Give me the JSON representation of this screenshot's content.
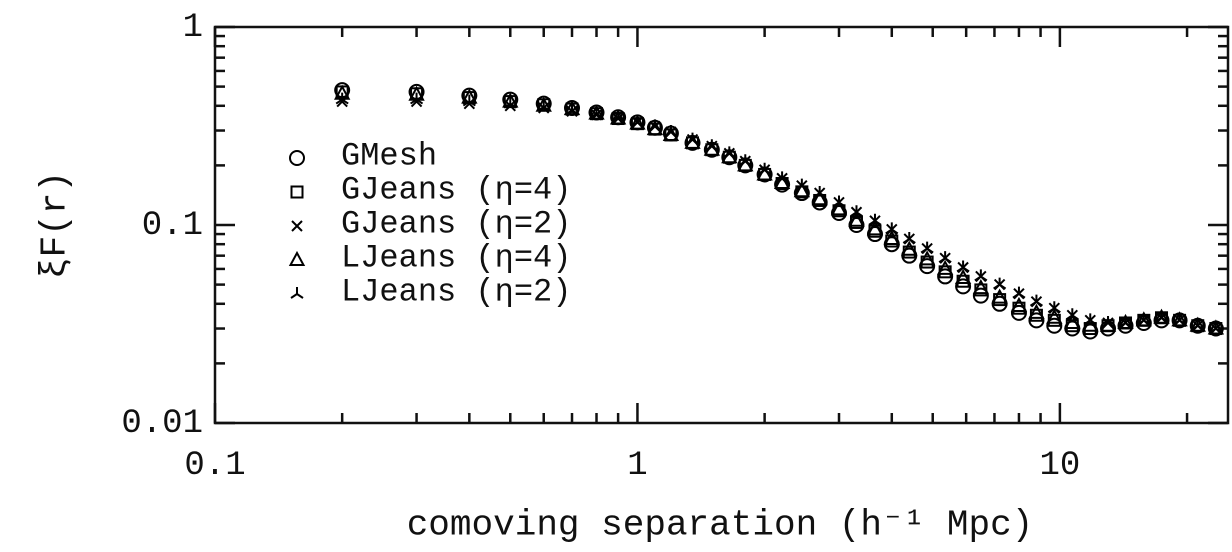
{
  "chart_data": {
    "type": "scatter",
    "x_label": "comoving separation (h⁻¹ Mpc)",
    "y_label": "ξF(r)",
    "x_log": true,
    "y_log": true,
    "xlim": [
      0.1,
      25
    ],
    "ylim": [
      0.01,
      1
    ],
    "xticks": [
      0.1,
      1,
      10
    ],
    "yticks": [
      0.01,
      0.1,
      1
    ],
    "legend": "left",
    "x": [
      0.2,
      0.3,
      0.4,
      0.5,
      0.6,
      0.7,
      0.8,
      0.9,
      1,
      1.1,
      1.2,
      1.35,
      1.5,
      1.65,
      1.8,
      2,
      2.2,
      2.45,
      2.7,
      3,
      3.3,
      3.65,
      4,
      4.4,
      4.85,
      5.35,
      5.9,
      6.5,
      7.2,
      8,
      8.8,
      9.7,
      10.7,
      11.8,
      13,
      14.3,
      15.8,
      17.4,
      19.2,
      21.2,
      23.4
    ],
    "series": [
      {
        "name": "GMesh",
        "marker": "circle",
        "color": "#000000",
        "values": [
          0.48,
          0.47,
          0.45,
          0.43,
          0.41,
          0.39,
          0.37,
          0.35,
          0.33,
          0.31,
          0.29,
          0.26,
          0.24,
          0.22,
          0.2,
          0.18,
          0.16,
          0.145,
          0.13,
          0.115,
          0.1,
          0.09,
          0.08,
          0.07,
          0.062,
          0.055,
          0.049,
          0.044,
          0.04,
          0.036,
          0.033,
          0.031,
          0.03,
          0.029,
          0.03,
          0.031,
          0.032,
          0.033,
          0.033,
          0.031,
          0.03
        ]
      },
      {
        "name": "GJeans (η=4)",
        "marker": "square",
        "color": "#000000",
        "values": [
          0.47,
          0.46,
          0.44,
          0.42,
          0.405,
          0.385,
          0.365,
          0.345,
          0.325,
          0.305,
          0.285,
          0.26,
          0.24,
          0.22,
          0.2,
          0.18,
          0.162,
          0.147,
          0.133,
          0.118,
          0.103,
          0.093,
          0.083,
          0.073,
          0.065,
          0.058,
          0.052,
          0.047,
          0.042,
          0.038,
          0.035,
          0.033,
          0.031,
          0.03,
          0.031,
          0.032,
          0.033,
          0.034,
          0.033,
          0.031,
          0.03
        ]
      },
      {
        "name": "GJeans (η=2)",
        "marker": "cross",
        "color": "#000000",
        "values": [
          0.42,
          0.42,
          0.41,
          0.4,
          0.39,
          0.375,
          0.36,
          0.345,
          0.33,
          0.315,
          0.295,
          0.27,
          0.25,
          0.23,
          0.21,
          0.19,
          0.172,
          0.158,
          0.145,
          0.13,
          0.116,
          0.105,
          0.095,
          0.085,
          0.076,
          0.068,
          0.061,
          0.055,
          0.05,
          0.045,
          0.041,
          0.038,
          0.035,
          0.033,
          0.032,
          0.032,
          0.033,
          0.034,
          0.033,
          0.031,
          0.03
        ]
      },
      {
        "name": "LJeans (η=4)",
        "marker": "triangle",
        "color": "#000000",
        "values": [
          0.46,
          0.455,
          0.44,
          0.42,
          0.4,
          0.385,
          0.365,
          0.345,
          0.325,
          0.305,
          0.285,
          0.26,
          0.24,
          0.22,
          0.2,
          0.18,
          0.163,
          0.148,
          0.135,
          0.12,
          0.105,
          0.095,
          0.085,
          0.075,
          0.067,
          0.06,
          0.054,
          0.048,
          0.043,
          0.039,
          0.036,
          0.034,
          0.032,
          0.031,
          0.031,
          0.032,
          0.033,
          0.034,
          0.033,
          0.031,
          0.03
        ]
      },
      {
        "name": "LJeans (η=2)",
        "marker": "tristar",
        "color": "#000000",
        "values": [
          0.43,
          0.43,
          0.42,
          0.41,
          0.395,
          0.38,
          0.365,
          0.35,
          0.33,
          0.315,
          0.295,
          0.27,
          0.25,
          0.23,
          0.21,
          0.19,
          0.172,
          0.158,
          0.145,
          0.13,
          0.116,
          0.105,
          0.095,
          0.085,
          0.076,
          0.068,
          0.061,
          0.055,
          0.05,
          0.045,
          0.041,
          0.038,
          0.035,
          0.033,
          0.032,
          0.032,
          0.033,
          0.034,
          0.033,
          0.031,
          0.03
        ]
      }
    ]
  }
}
